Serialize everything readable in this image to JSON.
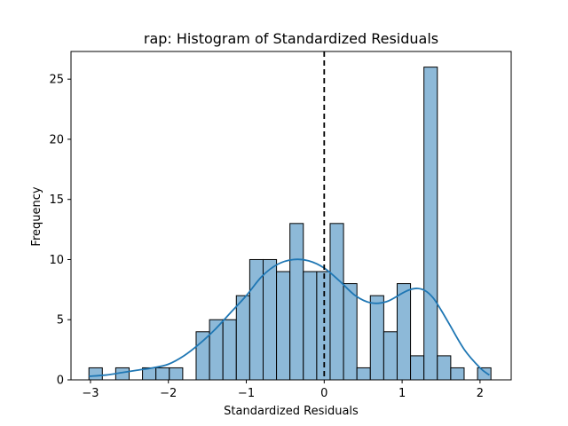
{
  "chart_data": {
    "type": "bar",
    "title": "rap: Histogram of Standardized Residuals",
    "xlabel": "Standardized Residuals",
    "ylabel": "Frequency",
    "xlim": [
      -3.25,
      2.4
    ],
    "ylim": [
      0,
      27.3
    ],
    "xticks": [
      -3,
      -2,
      -1,
      0,
      1,
      2
    ],
    "xtick_labels": [
      "−3",
      "−2",
      "−1",
      "0",
      "1",
      "2"
    ],
    "yticks": [
      0,
      5,
      10,
      15,
      20,
      25
    ],
    "ytick_labels": [
      "0",
      "5",
      "10",
      "15",
      "20",
      "25"
    ],
    "bins": {
      "start": -3.02,
      "width": 0.172,
      "counts": [
        1,
        0,
        1,
        0,
        1,
        1,
        1,
        0,
        4,
        5,
        5,
        7,
        10,
        10,
        9,
        13,
        9,
        9,
        13,
        8,
        1,
        7,
        4,
        8,
        2,
        26,
        2,
        1,
        0,
        1
      ]
    },
    "kde": {
      "x": [
        -3.02,
        -2.8,
        -2.6,
        -2.4,
        -2.2,
        -2.0,
        -1.8,
        -1.6,
        -1.4,
        -1.2,
        -1.0,
        -0.8,
        -0.6,
        -0.4,
        -0.2,
        0.0,
        0.2,
        0.4,
        0.6,
        0.8,
        1.0,
        1.1,
        1.2,
        1.3,
        1.4,
        1.5,
        1.6,
        1.8,
        2.0,
        2.12
      ],
      "y": [
        0.3,
        0.4,
        0.6,
        0.8,
        1.0,
        1.3,
        2.0,
        3.0,
        4.2,
        5.6,
        7.0,
        8.6,
        9.6,
        10.0,
        9.9,
        9.3,
        8.2,
        7.0,
        6.4,
        6.5,
        7.2,
        7.5,
        7.6,
        7.4,
        6.8,
        5.8,
        4.7,
        2.5,
        1.0,
        0.4
      ]
    },
    "reference_line_x": 0,
    "colors": {
      "bar_fill": "#8db9d8",
      "bar_edge": "#000000",
      "kde": "#1f77b4",
      "reference_line": "#000000"
    },
    "grid": false,
    "legend": "none"
  }
}
